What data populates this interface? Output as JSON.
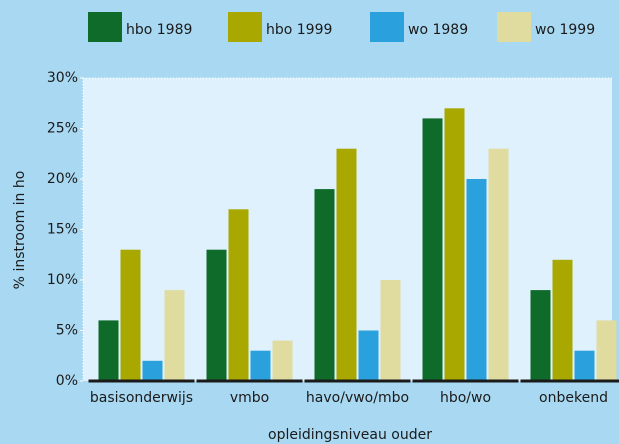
{
  "chart_data": {
    "type": "bar",
    "categories": [
      "basisonderwijs",
      "vmbo",
      "havo/vwo/mbo",
      "hbo/wo",
      "onbekend"
    ],
    "series": [
      {
        "name": "hbo 1989",
        "color": "#0e6b2a",
        "values": [
          6,
          13,
          19,
          26,
          9
        ]
      },
      {
        "name": "hbo 1999",
        "color": "#a8a800",
        "values": [
          13,
          17,
          23,
          27,
          12
        ]
      },
      {
        "name": "wo 1989",
        "color": "#2aa0dc",
        "values": [
          2,
          3,
          5,
          20,
          3
        ]
      },
      {
        "name": "wo 1999",
        "color": "#e0dca0",
        "values": [
          9,
          4,
          10,
          23,
          6
        ]
      }
    ],
    "ylim": [
      0,
      30
    ],
    "yticks": [
      {
        "value": 0,
        "label": "0%"
      },
      {
        "value": 5,
        "label": "5%"
      },
      {
        "value": 10,
        "label": "10%"
      },
      {
        "value": 15,
        "label": "15%"
      },
      {
        "value": 20,
        "label": "20%"
      },
      {
        "value": 25,
        "label": "25%"
      },
      {
        "value": 30,
        "label": "30%"
      }
    ],
    "xlabel": "opleidingsniveau ouder",
    "ylabel": "% instroom in ho",
    "legend": "top"
  }
}
